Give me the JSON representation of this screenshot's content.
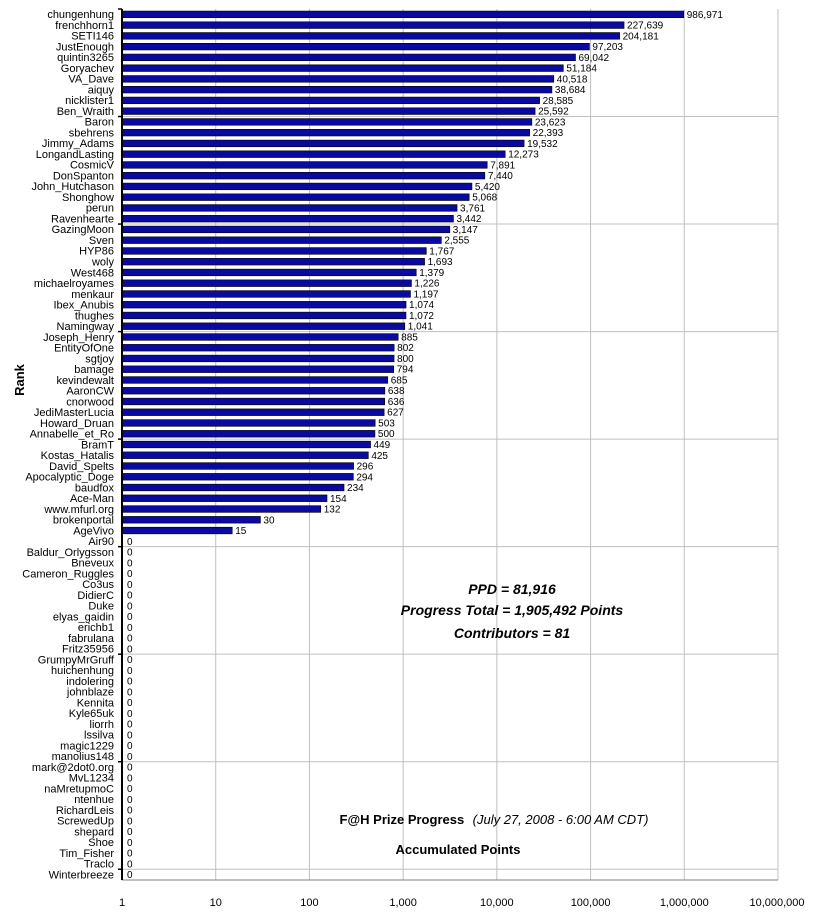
{
  "chart_data": {
    "type": "bar",
    "orientation": "horizontal",
    "x_scale": "log",
    "xlim": [
      1,
      10000000
    ],
    "grid": true,
    "bar_color": "#0a0aa0",
    "ylabel": "Rank",
    "x_ticks": [
      "1",
      "10",
      "100",
      "1,000",
      "10,000",
      "100,000",
      "1,000,000",
      "10,000,000"
    ],
    "title_bold": "F@H Prize Progress",
    "title_italic": "(July 27, 2008 - 6:00 AM CDT)",
    "subtitle": "Accumulated Points",
    "annotations": [
      "PPD = 81,916",
      "Progress Total = 1,905,492 Points",
      "Contributors = 81"
    ],
    "categories": [
      "chungenhung",
      "frenchhorn1",
      "SETI146",
      "JustEnough",
      "quintin3265",
      "Goryachev",
      "VA_Dave",
      "aiquy",
      "nicklister1",
      "Ben_Wraith",
      "Baron",
      "sbehrens",
      "Jimmy_Adams",
      "LongandLasting",
      "CosmicV",
      "DonSpanton",
      "John_Hutchason",
      "Shonghow",
      "perun",
      "Ravenhearte",
      "GazingMoon",
      "Sven",
      "HYP86",
      "woly",
      "West468",
      "michaelroyames",
      "menkaur",
      "Ibex_Anubis",
      "thughes",
      "Namingway",
      "Joseph_Henry",
      "EntityOfOne",
      "sgtjoy",
      "bamage",
      "kevindewalt",
      "AaronCW",
      "cnorwood",
      "JediMasterLucia",
      "Howard_Druan",
      "Annabelle_et_Ro",
      "BramT",
      "Kostas_Hatalis",
      "David_Spelts",
      "Apocalyptic_Doge",
      "baudfox",
      "Ace-Man",
      "www.mfurl.org",
      "brokenportal",
      "AgeVivo",
      "Air90",
      "Baldur_Orlygsson",
      "Bneveux",
      "Cameron_Ruggles",
      "Co3us",
      "DidierC",
      "Duke",
      "elyas_gaidin",
      "erichb1",
      "fabrulana",
      "Fritz35956",
      "GrumpyMrGruff",
      "huichenhung",
      "indolering",
      "johnblaze",
      "Kennita",
      "Kyle65uk",
      "liorrh",
      "lssilva",
      "magic1229",
      "manolius148",
      "mark@2dot0.org",
      "MvL1234",
      "naMretupmoC",
      "ntenhue",
      "RichardLeis",
      "ScrewedUp",
      "shepard",
      "Shoe",
      "Tim_Fisher",
      "Traclo",
      "Winterbreeze"
    ],
    "values": [
      986971,
      227639,
      204181,
      97203,
      69042,
      51184,
      40518,
      38684,
      28585,
      25592,
      23623,
      22393,
      19532,
      12273,
      7891,
      7440,
      5420,
      5068,
      3761,
      3442,
      3147,
      2555,
      1767,
      1693,
      1379,
      1226,
      1197,
      1074,
      1072,
      1041,
      885,
      802,
      800,
      794,
      685,
      638,
      636,
      627,
      503,
      500,
      449,
      425,
      296,
      294,
      234,
      154,
      132,
      30,
      15,
      0,
      0,
      0,
      0,
      0,
      0,
      0,
      0,
      0,
      0,
      0,
      0,
      0,
      0,
      0,
      0,
      0,
      0,
      0,
      0,
      0,
      0,
      0,
      0,
      0,
      0,
      0,
      0,
      0,
      0,
      0,
      0
    ],
    "value_labels": [
      "986,971",
      "227,639",
      "204,181",
      "97,203",
      "69,042",
      "51,184",
      "40,518",
      "38,684",
      "28,585",
      "25,592",
      "23,623",
      "22,393",
      "19,532",
      "12,273",
      "7,891",
      "7,440",
      "5,420",
      "5,068",
      "3,761",
      "3,442",
      "3,147",
      "2,555",
      "1,767",
      "1,693",
      "1,379",
      "1,226",
      "1,197",
      "1,074",
      "1,072",
      "1,041",
      "885",
      "802",
      "800",
      "794",
      "685",
      "638",
      "636",
      "627",
      "503",
      "500",
      "449",
      "425",
      "296",
      "294",
      "234",
      "154",
      "132",
      "30",
      "15",
      "0",
      "0",
      "0",
      "0",
      "0",
      "0",
      "0",
      "0",
      "0",
      "0",
      "0",
      "0",
      "0",
      "0",
      "0",
      "0",
      "0",
      "0",
      "0",
      "0",
      "0",
      "0",
      "0",
      "0",
      "0",
      "0",
      "0",
      "0",
      "0",
      "0",
      "0",
      "0"
    ]
  }
}
